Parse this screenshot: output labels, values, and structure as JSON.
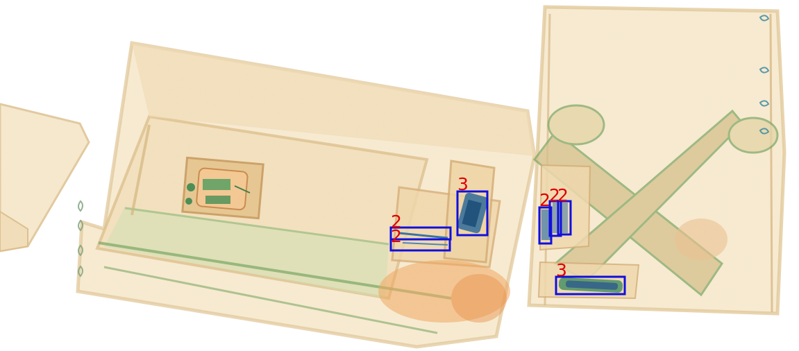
{
  "scene": {
    "colors": {
      "background": "#ffffff",
      "luggage_fill": "#f6e6c8",
      "luggage_edge": "#d9b886",
      "organic_green": "#8fb071",
      "dense_blue": "#2d5a8f",
      "bbox_stroke": "#1010dd",
      "label_color": "#e00000"
    },
    "detections": [
      {
        "label": "3"
      },
      {
        "label": "2"
      },
      {
        "label": "2"
      },
      {
        "label": "2"
      },
      {
        "label": "2"
      },
      {
        "label": "2"
      },
      {
        "label": "3"
      }
    ]
  }
}
